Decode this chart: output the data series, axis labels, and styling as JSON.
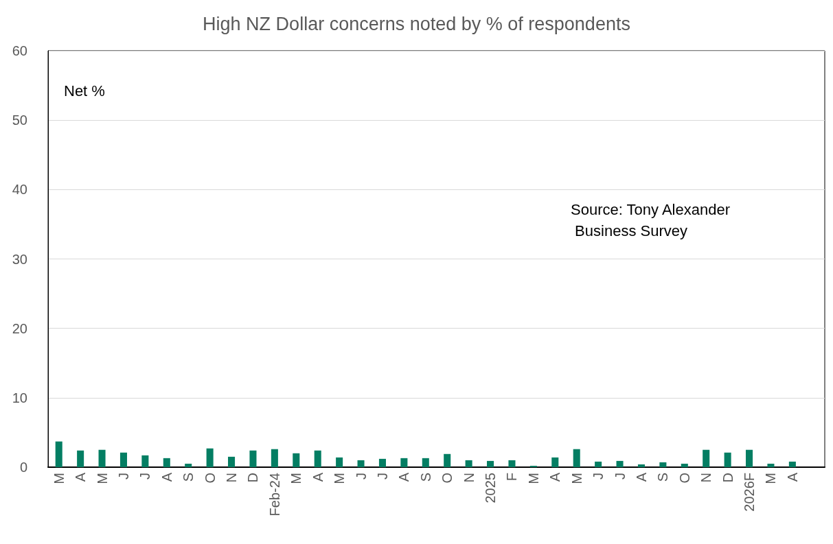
{
  "chart_data": {
    "type": "bar",
    "title": "High NZ Dollar concerns noted by % of respondents",
    "ylabel": "Net %",
    "categories": [
      "M",
      "A",
      "M",
      "J",
      "J",
      "A",
      "S",
      "O",
      "N",
      "D",
      "Feb-24",
      "M",
      "A",
      "M",
      "J",
      "J",
      "A",
      "S",
      "O",
      "N",
      "2025",
      "F",
      "M",
      "A",
      "M",
      "J",
      "J",
      "A",
      "S",
      "O",
      "N",
      "D",
      "2026F",
      "M",
      "A",
      null
    ],
    "values": [
      3.7,
      2.4,
      2.5,
      2.1,
      1.7,
      1.3,
      0.5,
      2.7,
      1.5,
      2.4,
      2.6,
      2.0,
      2.4,
      1.4,
      1.0,
      1.2,
      1.3,
      1.3,
      1.9,
      1.0,
      0.9,
      1.0,
      0.2,
      1.4,
      2.6,
      0.8,
      0.9,
      0.4,
      0.7,
      0.5,
      2.5,
      2.1,
      2.5,
      0.5,
      0.8,
      null
    ],
    "color": "#047e63",
    "ylim": [
      0,
      60
    ],
    "yticks": [
      0,
      10,
      20,
      30,
      40,
      50,
      60
    ],
    "grid": "y",
    "annotations": [
      "Source: Tony Alexander Business Survey"
    ]
  }
}
